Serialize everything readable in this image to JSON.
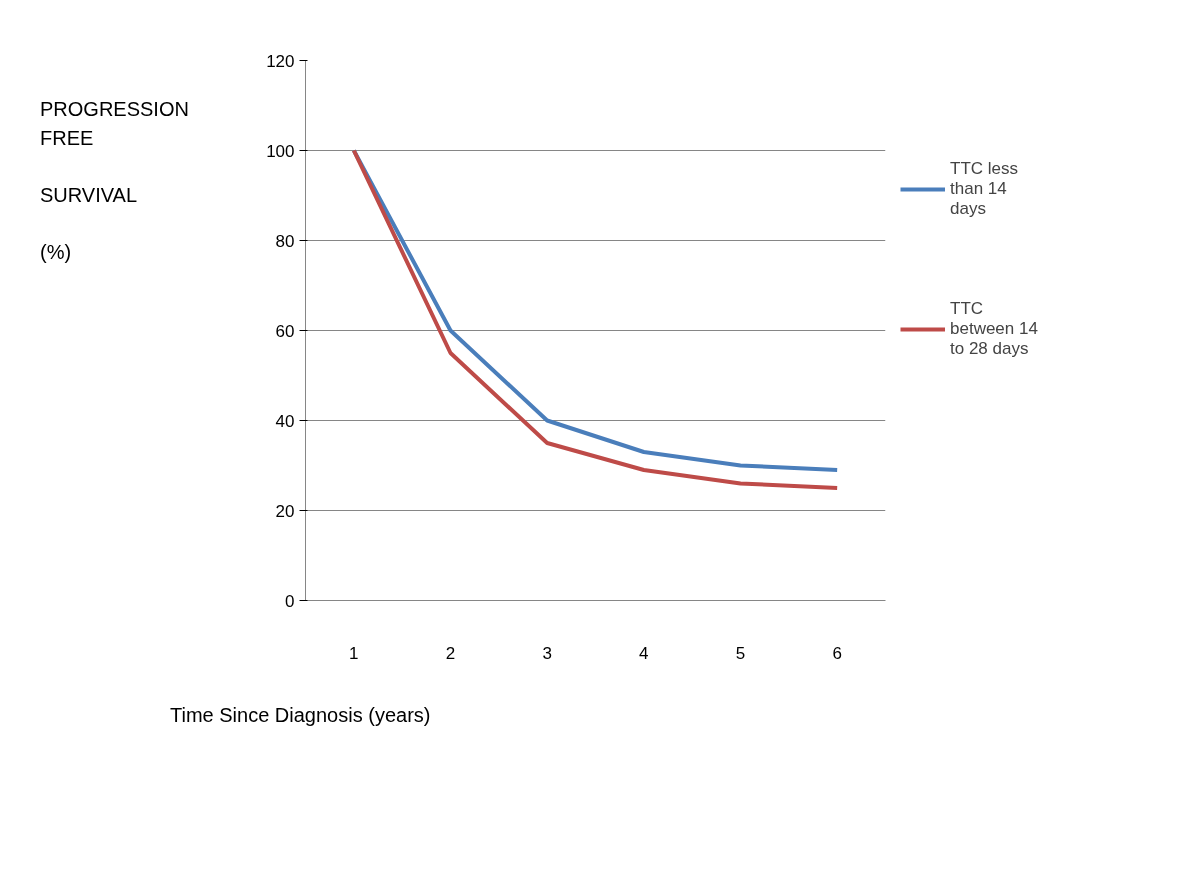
{
  "chart_data": {
    "type": "line",
    "ylabel": "PROGRESSION\nFREE\n\nSURVIVAL\n\n(%)",
    "xlabel": "Time Since Diagnosis (years)",
    "categories": [
      "1",
      "2",
      "3",
      "4",
      "5",
      "6"
    ],
    "series": [
      {
        "name": "TTC less than 14 days",
        "color": "#4a7ebb",
        "values": [
          100,
          60,
          40,
          33,
          30,
          29
        ]
      },
      {
        "name": "TTC between 14 to 28 days",
        "color": "#be4b48",
        "values": [
          100,
          55,
          35,
          29,
          26,
          25
        ]
      }
    ],
    "ylim": [
      0,
      120
    ],
    "yticks": [
      0,
      20,
      40,
      60,
      80,
      100,
      120
    ],
    "grid": "y",
    "legend": "right",
    "marker": "none",
    "line_style": "solid"
  }
}
